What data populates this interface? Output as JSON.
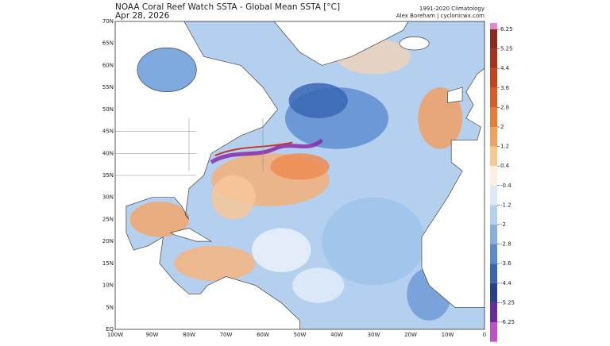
{
  "header": {
    "title": "NOAA Coral Reef Watch SSTA - Global Mean SSTA [°C]",
    "date": "Apr 28, 2026",
    "climatology": "1991-2020 Climatology",
    "credit": "Alex Boreham | cyclonicwx.com"
  },
  "map": {
    "lat_labels": [
      "70N",
      "65N",
      "60N",
      "55N",
      "50N",
      "45N",
      "40N",
      "35N",
      "30N",
      "25N",
      "20N",
      "15N",
      "10N",
      "5N",
      "EQ"
    ],
    "lon_labels": [
      "100W",
      "90W",
      "80W",
      "70W",
      "60W",
      "50W",
      "40W",
      "30W",
      "20W",
      "10W",
      "0"
    ]
  },
  "colorbar": {
    "ticks": [
      6.25,
      5.25,
      4.4,
      3.6,
      2.8,
      2,
      1.2,
      0.4,
      -0.4,
      -1.2,
      -2,
      -2.8,
      -3.6,
      -4.4,
      -5.25,
      -6.25
    ]
  }
}
